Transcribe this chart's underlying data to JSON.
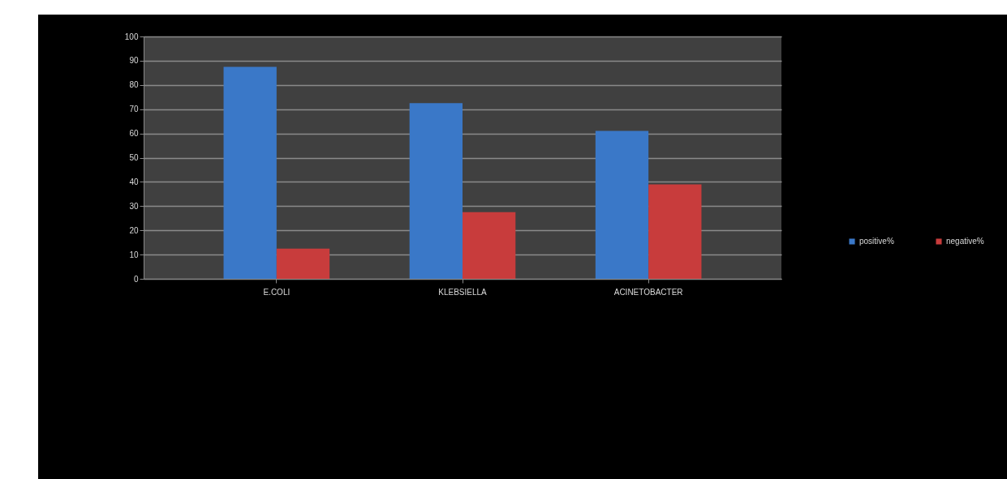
{
  "chart_data": {
    "type": "bar",
    "categories": [
      "E.COLI",
      "KLEBSIELLA",
      "ACINETOBACTER"
    ],
    "series": [
      {
        "name": "positive%",
        "color": "#3a78c8",
        "values": [
          87.5,
          72.5,
          61
        ]
      },
      {
        "name": "negative%",
        "color": "#c83c3c",
        "values": [
          12.5,
          27.5,
          39
        ]
      }
    ],
    "ylim": [
      0,
      100
    ],
    "yticks": [
      0,
      10,
      20,
      30,
      40,
      50,
      60,
      70,
      80,
      90,
      100
    ],
    "grid": "y",
    "legend": "right"
  }
}
